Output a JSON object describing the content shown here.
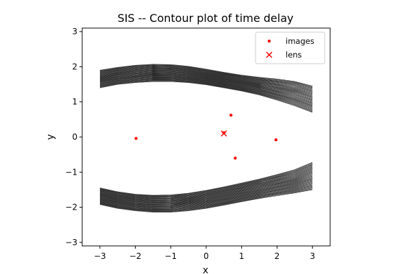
{
  "chart_data": {
    "type": "scatter",
    "title": "SIS -- Contour plot of time delay",
    "xlabel": "x",
    "ylabel": "y",
    "xlim": [
      -3.5,
      3.5
    ],
    "ylim": [
      -3.1,
      3.1
    ],
    "xticks": [
      -3,
      -2,
      -1,
      0,
      1,
      2,
      3
    ],
    "yticks": [
      -3,
      -2,
      -1,
      0,
      1,
      2,
      3
    ],
    "xtick_labels": [
      "−3",
      "−2",
      "−1",
      "0",
      "1",
      "2",
      "3"
    ],
    "ytick_labels": [
      "−3",
      "−2",
      "−1",
      "0",
      "1",
      "2",
      "3"
    ],
    "grid": false,
    "legend_position": "top-right",
    "colors": {
      "images": "#ff0000",
      "lens": "#ff0000",
      "contours": "#000000"
    },
    "series": [
      {
        "name": "images",
        "marker": "dot",
        "points": [
          {
            "x": -1.98,
            "y": -0.04
          },
          {
            "x": 0.5,
            "y": 0.12
          },
          {
            "x": 0.7,
            "y": 0.62
          },
          {
            "x": 0.82,
            "y": -0.6
          },
          {
            "x": 1.97,
            "y": -0.08
          }
        ]
      },
      {
        "name": "lens",
        "marker": "x",
        "points": [
          {
            "x": 0.5,
            "y": 0.1
          }
        ]
      }
    ],
    "contour_bands": [
      {
        "label": "upper",
        "outer_edge": [
          {
            "x": -3.0,
            "y": 1.9
          },
          {
            "x": -2.5,
            "y": 1.98
          },
          {
            "x": -2.0,
            "y": 2.04
          },
          {
            "x": -1.5,
            "y": 2.07
          },
          {
            "x": -1.0,
            "y": 2.06
          },
          {
            "x": -0.5,
            "y": 2.01
          },
          {
            "x": 0.0,
            "y": 1.93
          },
          {
            "x": 0.5,
            "y": 1.84
          },
          {
            "x": 1.0,
            "y": 1.76
          },
          {
            "x": 1.5,
            "y": 1.7
          },
          {
            "x": 2.0,
            "y": 1.65
          },
          {
            "x": 2.5,
            "y": 1.58
          },
          {
            "x": 3.0,
            "y": 1.45
          }
        ],
        "inner_edge": [
          {
            "x": -3.0,
            "y": 1.4
          },
          {
            "x": -2.5,
            "y": 1.5
          },
          {
            "x": -2.0,
            "y": 1.55
          },
          {
            "x": -1.5,
            "y": 1.58
          },
          {
            "x": -1.0,
            "y": 1.58
          },
          {
            "x": -0.5,
            "y": 1.55
          },
          {
            "x": 0.0,
            "y": 1.49
          },
          {
            "x": 0.5,
            "y": 1.4
          },
          {
            "x": 1.0,
            "y": 1.31
          },
          {
            "x": 1.5,
            "y": 1.2
          },
          {
            "x": 2.0,
            "y": 1.05
          },
          {
            "x": 2.5,
            "y": 0.89
          },
          {
            "x": 3.0,
            "y": 0.7
          }
        ]
      },
      {
        "label": "lower",
        "outer_edge": [
          {
            "x": -3.0,
            "y": -1.92
          },
          {
            "x": -2.5,
            "y": -2.03
          },
          {
            "x": -2.0,
            "y": -2.1
          },
          {
            "x": -1.5,
            "y": -2.14
          },
          {
            "x": -1.0,
            "y": -2.14
          },
          {
            "x": -0.5,
            "y": -2.1
          },
          {
            "x": 0.0,
            "y": -2.03
          },
          {
            "x": 0.5,
            "y": -1.94
          },
          {
            "x": 1.0,
            "y": -1.84
          },
          {
            "x": 1.5,
            "y": -1.75
          },
          {
            "x": 2.0,
            "y": -1.67
          },
          {
            "x": 2.5,
            "y": -1.59
          },
          {
            "x": 3.0,
            "y": -1.5
          }
        ],
        "inner_edge": [
          {
            "x": -3.0,
            "y": -1.45
          },
          {
            "x": -2.5,
            "y": -1.56
          },
          {
            "x": -2.0,
            "y": -1.63
          },
          {
            "x": -1.5,
            "y": -1.66
          },
          {
            "x": -1.0,
            "y": -1.65
          },
          {
            "x": -0.5,
            "y": -1.6
          },
          {
            "x": 0.0,
            "y": -1.52
          },
          {
            "x": 0.5,
            "y": -1.42
          },
          {
            "x": 1.0,
            "y": -1.31
          },
          {
            "x": 1.5,
            "y": -1.2
          },
          {
            "x": 2.0,
            "y": -1.07
          },
          {
            "x": 2.5,
            "y": -0.93
          },
          {
            "x": 3.0,
            "y": -0.72
          }
        ]
      }
    ]
  }
}
